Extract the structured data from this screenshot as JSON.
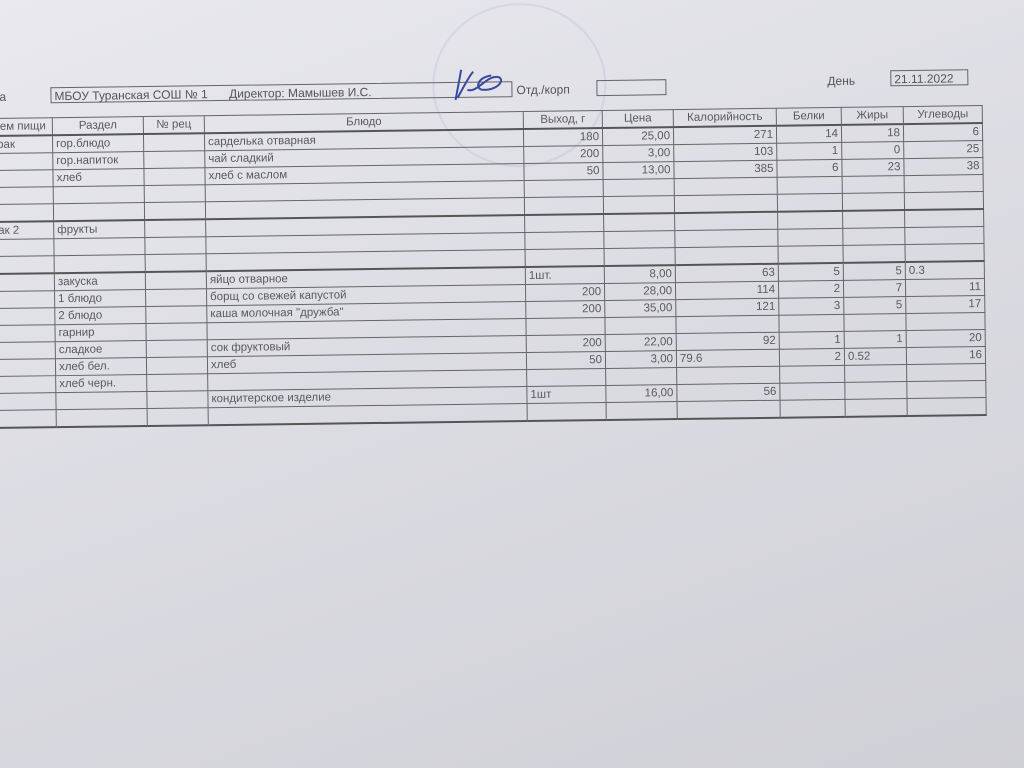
{
  "header": {
    "school_label": "ла",
    "school": "МБОУ Туранская СОШ № 1",
    "director": "Директор: Мамышев И.С.",
    "dept_label": "Отд./корп",
    "dept_value": "",
    "day_label": "День",
    "date": "21.11.2022"
  },
  "table": {
    "columns": [
      "ем пищи",
      "Раздел",
      "№ рец",
      "Блюдо",
      "Выход, г",
      "Цена",
      "Калорийность",
      "Белки",
      "Жиры",
      "Углеводы"
    ],
    "rows": [
      {
        "meal": "рак",
        "section": "гор.блюдо",
        "rec": "",
        "dish": "сарделька отварная",
        "out": "180",
        "price": "25,00",
        "cal": "271",
        "prot": "14",
        "fat": "18",
        "carb": "6"
      },
      {
        "meal": "",
        "section": "гор.напиток",
        "rec": "",
        "dish": "чай сладкий",
        "out": "200",
        "price": "3,00",
        "cal": "103",
        "prot": "1",
        "fat": "0",
        "carb": "25"
      },
      {
        "meal": "",
        "section": "хлеб",
        "rec": "",
        "dish": "хлеб с маслом",
        "out": "50",
        "price": "13,00",
        "cal": "385",
        "prot": "6",
        "fat": "23",
        "carb": "38"
      },
      {
        "meal": "",
        "section": "",
        "rec": "",
        "dish": "",
        "out": "",
        "price": "",
        "cal": "",
        "prot": "",
        "fat": "",
        "carb": ""
      },
      {
        "meal": "",
        "section": "",
        "rec": "",
        "dish": "",
        "out": "",
        "price": "",
        "cal": "",
        "prot": "",
        "fat": "",
        "carb": ""
      },
      {
        "meal": "ак 2",
        "section": "фрукты",
        "rec": "",
        "dish": "",
        "out": "",
        "price": "",
        "cal": "",
        "prot": "",
        "fat": "",
        "carb": "",
        "sep": true
      },
      {
        "meal": "",
        "section": "",
        "rec": "",
        "dish": "",
        "out": "",
        "price": "",
        "cal": "",
        "prot": "",
        "fat": "",
        "carb": ""
      },
      {
        "meal": "",
        "section": "",
        "rec": "",
        "dish": "",
        "out": "",
        "price": "",
        "cal": "",
        "prot": "",
        "fat": "",
        "carb": ""
      },
      {
        "meal": "",
        "section": "закуска",
        "rec": "",
        "dish": "яйцо отварное",
        "out": "1шт.",
        "price": "8,00",
        "cal": "63",
        "prot": "5",
        "fat": "5",
        "carb": "0.3",
        "sep": true,
        "out_left": true,
        "carb_left": true
      },
      {
        "meal": "",
        "section": "1 блюдо",
        "rec": "",
        "dish": "борщ со свежей капустой",
        "out": "200",
        "price": "28,00",
        "cal": "114",
        "prot": "2",
        "fat": "7",
        "carb": "11"
      },
      {
        "meal": "",
        "section": "2 блюдо",
        "rec": "",
        "dish": "каша молочная \"дружба\"",
        "out": "200",
        "price": "35,00",
        "cal": "121",
        "prot": "3",
        "fat": "5",
        "carb": "17"
      },
      {
        "meal": "",
        "section": "гарнир",
        "rec": "",
        "dish": "",
        "out": "",
        "price": "",
        "cal": "",
        "prot": "",
        "fat": "",
        "carb": ""
      },
      {
        "meal": "",
        "section": "сладкое",
        "rec": "",
        "dish": "сок фруктовый",
        "out": "200",
        "price": "22,00",
        "cal": "92",
        "prot": "1",
        "fat": "1",
        "carb": "20"
      },
      {
        "meal": "",
        "section": "хлеб бел.",
        "rec": "",
        "dish": "хлеб",
        "out": "50",
        "price": "3,00",
        "cal": "79.6",
        "prot": "2",
        "fat": "0.52",
        "carb": "16",
        "cal_left": true,
        "fat_left": true
      },
      {
        "meal": "",
        "section": "хлеб черн.",
        "rec": "",
        "dish": "",
        "out": "",
        "price": "",
        "cal": "",
        "prot": "",
        "fat": "",
        "carb": ""
      },
      {
        "meal": "",
        "section": "",
        "rec": "",
        "dish": "кондитерское изделие",
        "out": "1шт",
        "price": "16,00",
        "cal": "56",
        "prot": "",
        "fat": "",
        "carb": "",
        "out_left": true
      },
      {
        "meal": "",
        "section": "",
        "rec": "",
        "dish": "",
        "out": "",
        "price": "",
        "cal": "",
        "prot": "",
        "fat": "",
        "carb": "",
        "last": true
      }
    ]
  }
}
